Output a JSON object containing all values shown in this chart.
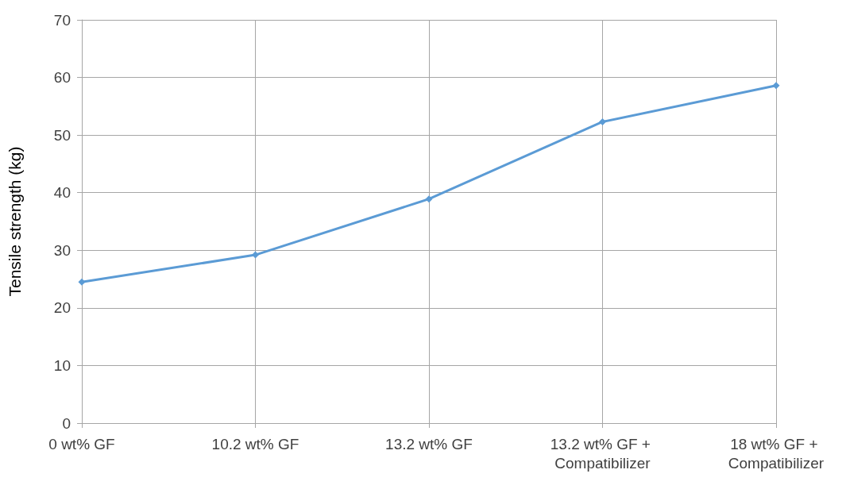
{
  "chart_data": {
    "type": "line",
    "ylabel": "Tensile strength (kg)",
    "categories": [
      "0 wt% GF",
      "10.2 wt% GF",
      "13.2 wt% GF",
      "13.2 wt% GF + Compatibilizer",
      "18 wt% GF + Compatibilizer"
    ],
    "series": [
      {
        "color": "#5b9bd5",
        "values": [
          24.5,
          29.2,
          38.9,
          52.3,
          58.6
        ]
      }
    ],
    "ylim": [
      0,
      70
    ],
    "yticks": [
      0,
      10,
      20,
      30,
      40,
      50,
      60,
      70
    ],
    "grid": true,
    "marker": "diamond",
    "line_style": "solid"
  }
}
